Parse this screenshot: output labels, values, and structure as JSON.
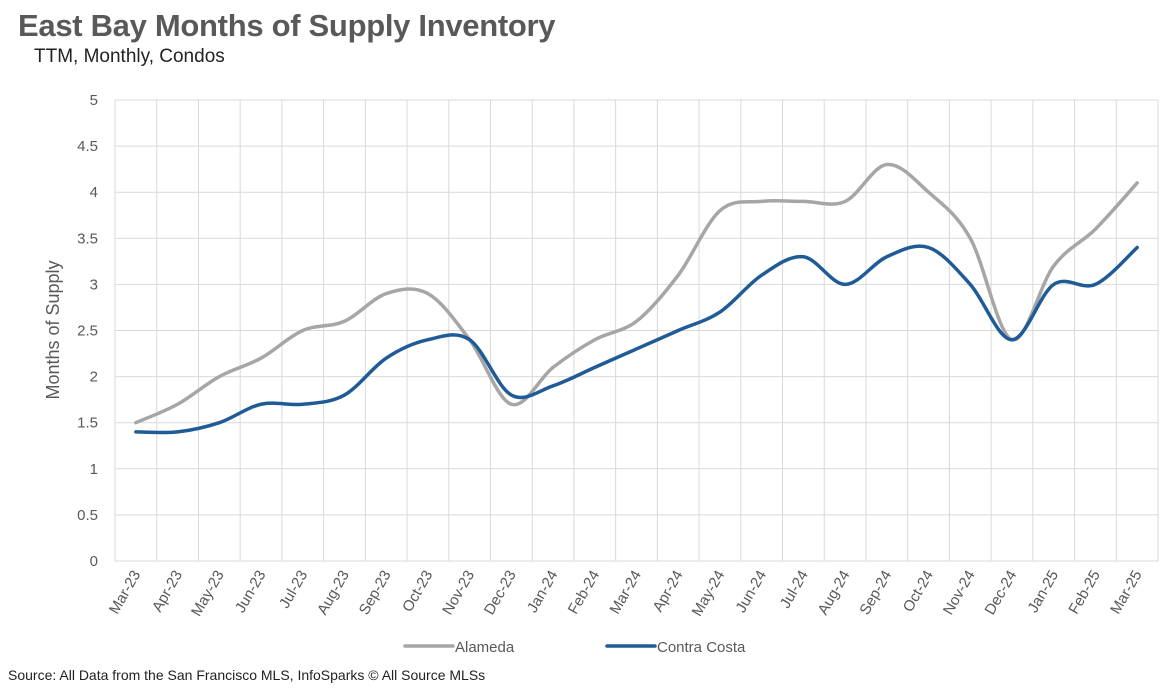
{
  "title": "East Bay Months of Supply Inventory",
  "subtitle": "TTM, Monthly, Condos",
  "source": "Source: All Data from the San Francisco MLS, InfoSparks © All Source MLSs",
  "chart_data": {
    "type": "line",
    "title": "East Bay Months of Supply Inventory",
    "subtitle": "TTM, Monthly, Condos",
    "xlabel": "",
    "ylabel": "Months of Supply",
    "ylim": [
      0,
      5
    ],
    "yticks": [
      "0",
      "0.5",
      "1",
      "1.5",
      "2",
      "2.5",
      "3",
      "3.5",
      "4",
      "4.5",
      "5"
    ],
    "grid": true,
    "smooth": true,
    "legend_position": "bottom",
    "categories": [
      "Mar-23",
      "Apr-23",
      "May-23",
      "Jun-23",
      "Jul-23",
      "Aug-23",
      "Sep-23",
      "Oct-23",
      "Nov-23",
      "Dec-23",
      "Jan-24",
      "Feb-24",
      "Mar-24",
      "Apr-24",
      "May-24",
      "Jun-24",
      "Jul-24",
      "Aug-24",
      "Sep-24",
      "Oct-24",
      "Nov-24",
      "Dec-24",
      "Jan-25",
      "Feb-25",
      "Mar-25"
    ],
    "series": [
      {
        "name": "Alameda",
        "color": "#a6a6a6",
        "values": [
          1.5,
          1.7,
          2.0,
          2.2,
          2.5,
          2.6,
          2.9,
          2.9,
          2.4,
          1.7,
          2.1,
          2.4,
          2.6,
          3.1,
          3.8,
          3.9,
          3.9,
          3.9,
          4.3,
          4.0,
          3.5,
          2.4,
          3.2,
          3.6,
          4.1
        ]
      },
      {
        "name": "Contra Costa",
        "color": "#1f5b96",
        "values": [
          1.4,
          1.4,
          1.5,
          1.7,
          1.7,
          1.8,
          2.2,
          2.4,
          2.4,
          1.8,
          1.9,
          2.1,
          2.3,
          2.5,
          2.7,
          3.1,
          3.3,
          3.0,
          3.3,
          3.4,
          3.0,
          2.4,
          3.0,
          3.0,
          3.4
        ]
      }
    ]
  }
}
